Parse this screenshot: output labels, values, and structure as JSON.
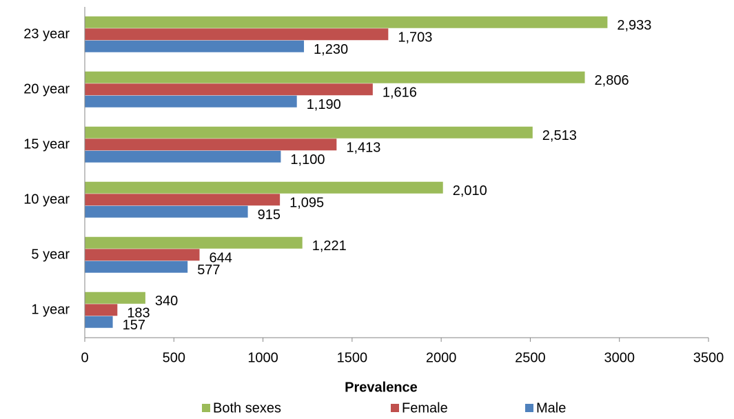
{
  "chart_data": {
    "type": "hbar",
    "x_label": "Prevalence",
    "categories": [
      "1 year",
      "5 year",
      "10 year",
      "15 year",
      "20 year",
      "23 year"
    ],
    "series": [
      {
        "name": "Both sexes",
        "color": "#9bbb59",
        "values": [
          340,
          1221,
          2010,
          2513,
          2806,
          2933
        ],
        "value_labels": [
          "340",
          "1,221",
          "2,010",
          "2,513",
          "2,806",
          "2,933"
        ]
      },
      {
        "name": "Female",
        "color": "#c0504d",
        "values": [
          183,
          644,
          1095,
          1413,
          1616,
          1703
        ],
        "value_labels": [
          "183",
          "644",
          "1,095",
          "1,413",
          "1,616",
          "1,703"
        ]
      },
      {
        "name": "Male",
        "color": "#4f81bd",
        "values": [
          157,
          577,
          915,
          1100,
          1190,
          1230
        ],
        "value_labels": [
          "157",
          "577",
          "915",
          "1,100",
          "1,190",
          "1,230"
        ]
      }
    ],
    "xlim": [
      0,
      3500
    ],
    "xticks": [
      0,
      500,
      1000,
      1500,
      2000,
      2500,
      3000,
      3500
    ],
    "grid": false,
    "legend": "bottom"
  }
}
